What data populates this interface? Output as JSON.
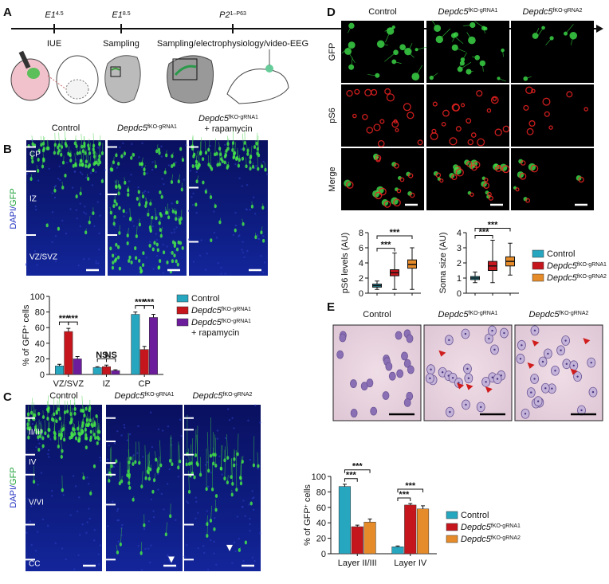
{
  "panel_labels": [
    "A",
    "B",
    "C",
    "D",
    "E"
  ],
  "timeline": {
    "times": [
      "E14.5",
      "E18.5",
      "P21–P63"
    ],
    "events": [
      "IUE",
      "Sampling",
      "Sampling/electrophysiology/video-EEG"
    ]
  },
  "panel_b": {
    "columns": [
      "Control",
      "Depdc5fKO-gRNA1",
      "Depdc5fKO-gRNA1 + rapamycin"
    ],
    "layers": [
      "CP",
      "IZ",
      "VZ/SVZ"
    ],
    "stain": [
      "DAPI/",
      "GFP"
    ]
  },
  "panel_c": {
    "columns": [
      "Control",
      "Depdc5fKO-gRNA1",
      "Depdc5fKO-gRNA2"
    ],
    "layers": [
      "II/III",
      "IV",
      "V/VI",
      "CC"
    ],
    "stain": [
      "DAPI/",
      "GFP"
    ]
  },
  "panel_d": {
    "columns": [
      "Control",
      "Depdc5fKO-gRNA1",
      "Depdc5fKO-gRNA2"
    ],
    "rows": [
      "GFP",
      "pS6",
      "Merge"
    ]
  },
  "panel_e": {
    "columns": [
      "Control",
      "Depdc5fKO-gRNA1",
      "Depdc5fKO-gRNA2"
    ]
  },
  "chart_data": [
    {
      "type": "bar",
      "ylabel": "% of GFP+ cells",
      "categories": [
        "VZ/SVZ",
        "IZ",
        "CP"
      ],
      "series": [
        {
          "name": "Control",
          "color": "#27a6c0",
          "values": [
            11,
            9,
            77
          ],
          "errors": [
            2,
            1,
            3
          ]
        },
        {
          "name": "Depdc5fKO-gRNA1",
          "color": "#c4161c",
          "values": [
            55,
            10,
            32
          ],
          "errors": [
            4,
            2,
            4
          ]
        },
        {
          "name": "Depdc5fKO-gRNA1 + rapamycin",
          "color": "#6c1d9b",
          "values": [
            20,
            5,
            73
          ],
          "errors": [
            3,
            1,
            4
          ]
        }
      ],
      "ylim": [
        0,
        100
      ],
      "yticks": [
        0,
        20,
        40,
        60,
        80,
        100
      ],
      "significance": [
        [
          "***",
          "***"
        ],
        [
          "NS",
          "NS"
        ],
        [
          "***",
          "***"
        ]
      ]
    },
    {
      "type": "bar",
      "ylabel": "% of GFP+ cells",
      "categories": [
        "Layer II/III",
        "Layer IV"
      ],
      "series": [
        {
          "name": "Control",
          "color": "#27a6c0",
          "values": [
            87,
            9
          ],
          "errors": [
            3,
            1
          ]
        },
        {
          "name": "Depdc5fKO-gRNA1",
          "color": "#c4161c",
          "values": [
            35,
            63
          ],
          "errors": [
            2,
            2
          ]
        },
        {
          "name": "Depdc5fKO-gRNA2",
          "color": "#e58b2a",
          "values": [
            41,
            58
          ],
          "errors": [
            4,
            4
          ]
        }
      ],
      "ylim": [
        0,
        100
      ],
      "yticks": [
        0,
        20,
        40,
        60,
        80,
        100
      ],
      "significance": [
        [
          "***",
          "***"
        ],
        [
          "***",
          "***"
        ]
      ]
    },
    {
      "type": "box",
      "ylabel": "pS6 levels (AU)",
      "categories": [
        null,
        null,
        null
      ],
      "series": [
        {
          "color": "#27a6c0",
          "min": 0.5,
          "q1": 0.8,
          "median": 1,
          "q3": 1.2,
          "max": 1.6
        },
        {
          "color": "#c4161c",
          "min": 0.5,
          "q1": 2.3,
          "median": 2.7,
          "q3": 3.1,
          "max": 5.3
        },
        {
          "color": "#e58b2a",
          "min": 0.5,
          "q1": 3.3,
          "median": 3.8,
          "q3": 4.4,
          "max": 6
        }
      ],
      "ylim": [
        0,
        8
      ],
      "yticks": [
        0,
        2,
        4,
        6,
        8
      ],
      "significance": [
        "***",
        "***"
      ]
    },
    {
      "type": "box",
      "ylabel": "Soma size (AU)",
      "categories": [
        null,
        null,
        null
      ],
      "series": [
        {
          "name": "Control",
          "color": "#27a6c0",
          "min": 0.7,
          "q1": 0.9,
          "median": 1,
          "q3": 1.1,
          "max": 1.4
        },
        {
          "name": "Depdc5fKO-gRNA1",
          "color": "#c4161c",
          "min": 0.7,
          "q1": 1.5,
          "median": 1.8,
          "q3": 2.1,
          "max": 3.5
        },
        {
          "name": "Depdc5fKO-gRNA2",
          "color": "#e58b2a",
          "min": 1.2,
          "q1": 1.8,
          "median": 2.1,
          "q3": 2.4,
          "max": 3.3
        }
      ],
      "ylim": [
        0,
        4
      ],
      "yticks": [
        0,
        1,
        2,
        3,
        4
      ],
      "significance": [
        "***",
        "***"
      ]
    }
  ]
}
